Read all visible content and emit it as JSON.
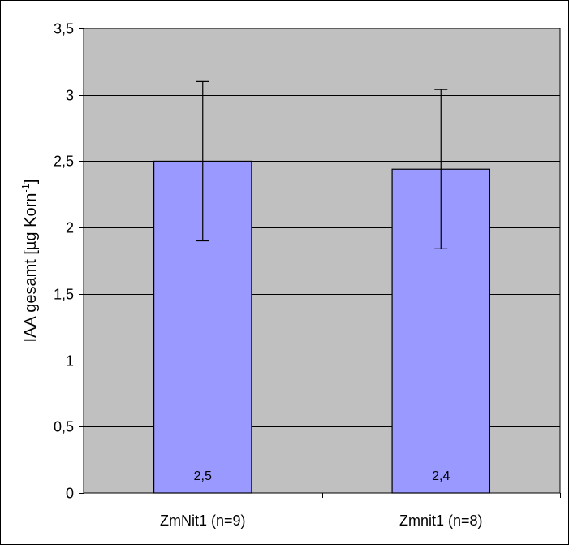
{
  "colors": {
    "plot_background": "#c0c0c0",
    "bar_fill": "#9999ff",
    "bar_stroke": "#000000",
    "grid": "#000000",
    "frame": "#000000",
    "page_background": "#ffffff"
  },
  "chart_data": {
    "type": "bar",
    "categories": [
      "ZmNit1 (n=9)",
      "Zmnit1 (n=8)"
    ],
    "values": [
      2.5,
      2.44
    ],
    "error_low": [
      1.9,
      1.84
    ],
    "error_high": [
      3.1,
      3.04
    ],
    "data_labels": [
      "2,5",
      "2,4"
    ],
    "ylabel_main": "IAA gesamt [µg Korn",
    "ylabel_sup": "-1",
    "ylabel_close": "]",
    "ylim": [
      0,
      3.5
    ],
    "y_ticks": [
      0,
      0.5,
      1,
      1.5,
      2,
      2.5,
      3,
      3.5
    ],
    "y_tick_labels": [
      "0",
      "0,5",
      "1",
      "1,5",
      "2",
      "2,5",
      "3",
      "3,5"
    ],
    "grid": true,
    "legend": "none"
  }
}
